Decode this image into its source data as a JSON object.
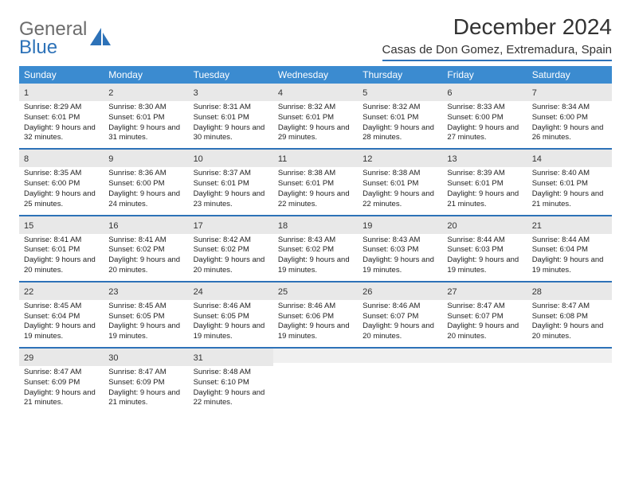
{
  "brand": {
    "word1": "General",
    "word2": "Blue"
  },
  "title": "December 2024",
  "subtitle": "Casas de Don Gomez, Extremadura, Spain",
  "colors": {
    "header_bg": "#3b8bd0",
    "rule": "#2d72b8",
    "daynum_bg": "#e8e8e8",
    "blank_bg": "#f0f0f0",
    "text": "#222222",
    "logo_gray": "#6c6c6c",
    "logo_blue": "#2d72b8",
    "page_bg": "#ffffff"
  },
  "typography": {
    "title_fontsize": 28,
    "subtitle_fontsize": 15,
    "weekday_fontsize": 12,
    "daynum_fontsize": 11,
    "detail_fontsize": 9.5
  },
  "weekdays": [
    "Sunday",
    "Monday",
    "Tuesday",
    "Wednesday",
    "Thursday",
    "Friday",
    "Saturday"
  ],
  "weeks": [
    [
      {
        "n": "1",
        "sr": "8:29 AM",
        "ss": "6:01 PM",
        "dl": "9 hours and 32 minutes."
      },
      {
        "n": "2",
        "sr": "8:30 AM",
        "ss": "6:01 PM",
        "dl": "9 hours and 31 minutes."
      },
      {
        "n": "3",
        "sr": "8:31 AM",
        "ss": "6:01 PM",
        "dl": "9 hours and 30 minutes."
      },
      {
        "n": "4",
        "sr": "8:32 AM",
        "ss": "6:01 PM",
        "dl": "9 hours and 29 minutes."
      },
      {
        "n": "5",
        "sr": "8:32 AM",
        "ss": "6:01 PM",
        "dl": "9 hours and 28 minutes."
      },
      {
        "n": "6",
        "sr": "8:33 AM",
        "ss": "6:00 PM",
        "dl": "9 hours and 27 minutes."
      },
      {
        "n": "7",
        "sr": "8:34 AM",
        "ss": "6:00 PM",
        "dl": "9 hours and 26 minutes."
      }
    ],
    [
      {
        "n": "8",
        "sr": "8:35 AM",
        "ss": "6:00 PM",
        "dl": "9 hours and 25 minutes."
      },
      {
        "n": "9",
        "sr": "8:36 AM",
        "ss": "6:00 PM",
        "dl": "9 hours and 24 minutes."
      },
      {
        "n": "10",
        "sr": "8:37 AM",
        "ss": "6:01 PM",
        "dl": "9 hours and 23 minutes."
      },
      {
        "n": "11",
        "sr": "8:38 AM",
        "ss": "6:01 PM",
        "dl": "9 hours and 22 minutes."
      },
      {
        "n": "12",
        "sr": "8:38 AM",
        "ss": "6:01 PM",
        "dl": "9 hours and 22 minutes."
      },
      {
        "n": "13",
        "sr": "8:39 AM",
        "ss": "6:01 PM",
        "dl": "9 hours and 21 minutes."
      },
      {
        "n": "14",
        "sr": "8:40 AM",
        "ss": "6:01 PM",
        "dl": "9 hours and 21 minutes."
      }
    ],
    [
      {
        "n": "15",
        "sr": "8:41 AM",
        "ss": "6:01 PM",
        "dl": "9 hours and 20 minutes."
      },
      {
        "n": "16",
        "sr": "8:41 AM",
        "ss": "6:02 PM",
        "dl": "9 hours and 20 minutes."
      },
      {
        "n": "17",
        "sr": "8:42 AM",
        "ss": "6:02 PM",
        "dl": "9 hours and 20 minutes."
      },
      {
        "n": "18",
        "sr": "8:43 AM",
        "ss": "6:02 PM",
        "dl": "9 hours and 19 minutes."
      },
      {
        "n": "19",
        "sr": "8:43 AM",
        "ss": "6:03 PM",
        "dl": "9 hours and 19 minutes."
      },
      {
        "n": "20",
        "sr": "8:44 AM",
        "ss": "6:03 PM",
        "dl": "9 hours and 19 minutes."
      },
      {
        "n": "21",
        "sr": "8:44 AM",
        "ss": "6:04 PM",
        "dl": "9 hours and 19 minutes."
      }
    ],
    [
      {
        "n": "22",
        "sr": "8:45 AM",
        "ss": "6:04 PM",
        "dl": "9 hours and 19 minutes."
      },
      {
        "n": "23",
        "sr": "8:45 AM",
        "ss": "6:05 PM",
        "dl": "9 hours and 19 minutes."
      },
      {
        "n": "24",
        "sr": "8:46 AM",
        "ss": "6:05 PM",
        "dl": "9 hours and 19 minutes."
      },
      {
        "n": "25",
        "sr": "8:46 AM",
        "ss": "6:06 PM",
        "dl": "9 hours and 19 minutes."
      },
      {
        "n": "26",
        "sr": "8:46 AM",
        "ss": "6:07 PM",
        "dl": "9 hours and 20 minutes."
      },
      {
        "n": "27",
        "sr": "8:47 AM",
        "ss": "6:07 PM",
        "dl": "9 hours and 20 minutes."
      },
      {
        "n": "28",
        "sr": "8:47 AM",
        "ss": "6:08 PM",
        "dl": "9 hours and 20 minutes."
      }
    ],
    [
      {
        "n": "29",
        "sr": "8:47 AM",
        "ss": "6:09 PM",
        "dl": "9 hours and 21 minutes."
      },
      {
        "n": "30",
        "sr": "8:47 AM",
        "ss": "6:09 PM",
        "dl": "9 hours and 21 minutes."
      },
      {
        "n": "31",
        "sr": "8:48 AM",
        "ss": "6:10 PM",
        "dl": "9 hours and 22 minutes."
      },
      {
        "blank": true
      },
      {
        "blank": true
      },
      {
        "blank": true
      },
      {
        "blank": true
      }
    ]
  ],
  "labels": {
    "sunrise": "Sunrise: ",
    "sunset": "Sunset: ",
    "daylight": "Daylight: "
  }
}
